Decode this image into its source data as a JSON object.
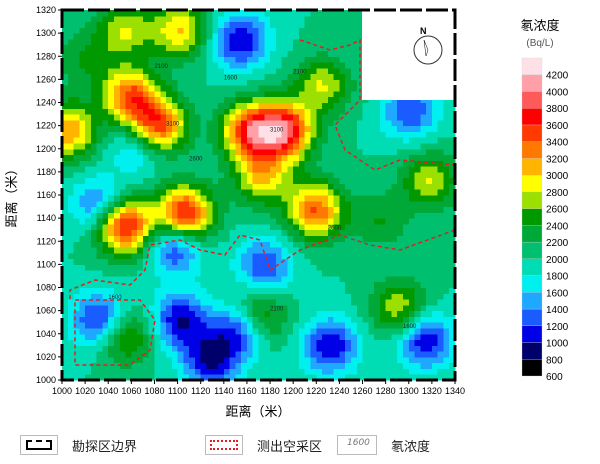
{
  "chart_data": {
    "type": "heatmap",
    "subtype": "contour",
    "xlabel": "距离（米）",
    "ylabel": "距离（米）",
    "xlim": [
      1000,
      1340
    ],
    "ylim": [
      1000,
      1320
    ],
    "xticks": [
      1000,
      1020,
      1040,
      1060,
      1080,
      1100,
      1120,
      1140,
      1160,
      1180,
      1200,
      1220,
      1240,
      1260,
      1280,
      1300,
      1320,
      1340
    ],
    "yticks": [
      1000,
      1020,
      1040,
      1060,
      1080,
      1100,
      1120,
      1140,
      1160,
      1180,
      1200,
      1220,
      1240,
      1260,
      1280,
      1300,
      1320
    ],
    "background_value": 2000,
    "peaks": [
      [
        1005,
        1216,
        3200
      ],
      [
        1059,
        1246,
        3400
      ],
      [
        1083,
        1220,
        3600
      ],
      [
        1106,
        1143,
        3800
      ],
      [
        1054,
        1134,
        3800
      ],
      [
        1163,
        1216,
        3600
      ],
      [
        1193,
        1216,
        3800
      ],
      [
        1219,
        1147,
        3400
      ],
      [
        1173,
        1177,
        3000
      ],
      [
        1102,
        1303,
        3000
      ],
      [
        1054,
        1303,
        2800
      ],
      [
        1225,
        1255,
        2800
      ],
      [
        1318,
        1173,
        2800
      ],
      [
        1170,
        1054,
        2800
      ],
      [
        1054,
        1039,
        2800
      ],
      [
        1292,
        1062,
        2800
      ],
      [
        1020,
        1277,
        2400
      ],
      [
        1275,
        1138,
        2400
      ],
      [
        1098,
        1117,
        1000
      ],
      [
        1033,
        1052,
        1000
      ],
      [
        1102,
        1052,
        1000
      ],
      [
        1154,
        1294,
        1000
      ],
      [
        1154,
        1043,
        1000
      ],
      [
        1232,
        1030,
        1000
      ],
      [
        1314,
        1035,
        1000
      ],
      [
        1301,
        1233,
        1200
      ],
      [
        1033,
        1151,
        1200
      ],
      [
        1175,
        1100,
        1200
      ],
      [
        1128,
        1017,
        1000
      ],
      [
        1067,
        1203,
        1400
      ]
    ],
    "contour_labels": [
      "1600",
      "2100",
      "2600",
      "3100"
    ],
    "colorbar": {
      "title": "氡浓度",
      "unit": "(Bq/L)",
      "ticks": [
        "4200",
        "4000",
        "3800",
        "3600",
        "3400",
        "3200",
        "3000",
        "2800",
        "2600",
        "2400",
        "2200",
        "2000",
        "1800",
        "1600",
        "1400",
        "1200",
        "1000",
        "800",
        "600"
      ],
      "levels": [
        600,
        800,
        1000,
        1200,
        1400,
        1600,
        1800,
        2000,
        2200,
        2400,
        2600,
        2800,
        3000,
        3200,
        3400,
        3600,
        3800,
        4000,
        4200,
        4400
      ],
      "colors": [
        "#000000",
        "#00006a",
        "#0000e6",
        "#1a5cff",
        "#1fa8ff",
        "#00f0f0",
        "#00dcb4",
        "#00c070",
        "#00a838",
        "#009a00",
        "#9be000",
        "#ffff00",
        "#ffb400",
        "#ff7800",
        "#ff3a00",
        "#ff0000",
        "#ff5a5a",
        "#ff9fa8",
        "#ffe0e6",
        "#ffffff"
      ]
    },
    "north_label": "N"
  },
  "legend": {
    "boundary": "勘探区边界",
    "goaf": "测出空采区",
    "contour": "氡浓度",
    "contour_sample": "1600"
  },
  "colors": {
    "boundary": "#000000",
    "goaf": "#e02020"
  }
}
